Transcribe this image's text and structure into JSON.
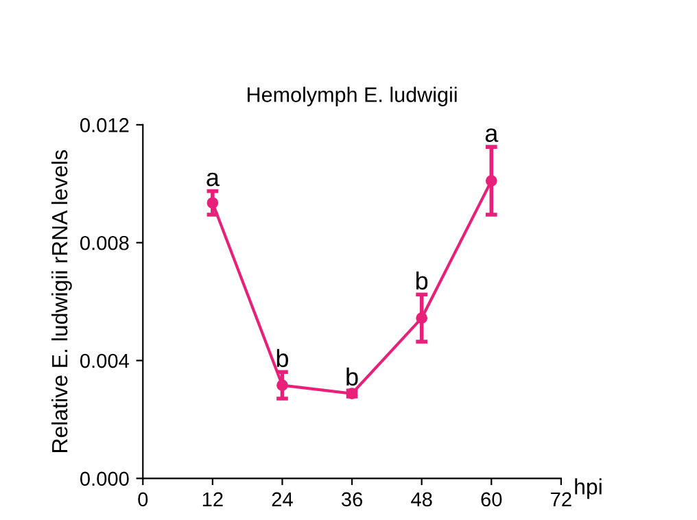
{
  "chart_data": {
    "type": "line",
    "title": "Hemolymph E. ludwigii",
    "xlabel": "hpi",
    "ylabel": "Relative E. ludwigii rRNA levels",
    "x": [
      12,
      24,
      36,
      48,
      60
    ],
    "series": [
      {
        "color": "#e8207a",
        "values": [
          0.00935,
          0.00316,
          0.00288,
          0.00544,
          0.0101
        ],
        "errors": [
          0.0004,
          0.00045,
          0.0001,
          0.0008,
          0.00115
        ]
      }
    ],
    "xlim": [
      0,
      72
    ],
    "xticks": [
      0,
      12,
      24,
      36,
      48,
      60,
      72
    ],
    "ylim": [
      0,
      0.012
    ],
    "yticks": [
      {
        "value": 0,
        "label": "0.000"
      },
      {
        "value": 0.004,
        "label": "0.004"
      },
      {
        "value": 0.008,
        "label": "0.008"
      },
      {
        "value": 0.012,
        "label": "0.012"
      }
    ],
    "annotations": [
      {
        "text": "a",
        "x": 12,
        "y": 0.00975
      },
      {
        "text": "b",
        "x": 24,
        "y": 0.00361
      },
      {
        "text": "b",
        "x": 36,
        "y": 0.00298
      },
      {
        "text": "b",
        "x": 48,
        "y": 0.00624
      },
      {
        "text": "a",
        "x": 60,
        "y": 0.01125
      }
    ],
    "marker": "circle",
    "line_style": "solid",
    "grid": false,
    "legend": false
  }
}
